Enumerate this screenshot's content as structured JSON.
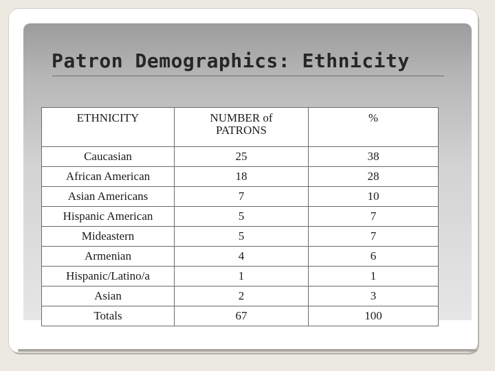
{
  "slide": {
    "title": "Patron Demographics: Ethnicity"
  },
  "table": {
    "headers": {
      "ethnicity": "ETHNICITY",
      "number_line1": "NUMBER of",
      "number_line2": "PATRONS",
      "percent": "%"
    },
    "rows": [
      {
        "ethnicity": "Caucasian",
        "number": "25",
        "percent": "38"
      },
      {
        "ethnicity": "African American",
        "number": "18",
        "percent": "28"
      },
      {
        "ethnicity": "Asian Americans",
        "number": "7",
        "percent": "10"
      },
      {
        "ethnicity": "Hispanic American",
        "number": "5",
        "percent": "7"
      },
      {
        "ethnicity": "Mideastern",
        "number": "5",
        "percent": "7"
      },
      {
        "ethnicity": "Armenian",
        "number": "4",
        "percent": "6"
      },
      {
        "ethnicity": "Hispanic/Latino/a",
        "number": "1",
        "percent": "1"
      },
      {
        "ethnicity": "Asian",
        "number": "2",
        "percent": "3"
      }
    ],
    "totals": {
      "label": "Totals",
      "number": "67",
      "percent": "100"
    }
  },
  "colors": {
    "slide_background": "#ece9e1",
    "panel_gradient_top": "#9c9c9c",
    "panel_gradient_bottom": "#e6e6e6",
    "title_text": "#262626",
    "table_border": "#6a6a6a"
  }
}
